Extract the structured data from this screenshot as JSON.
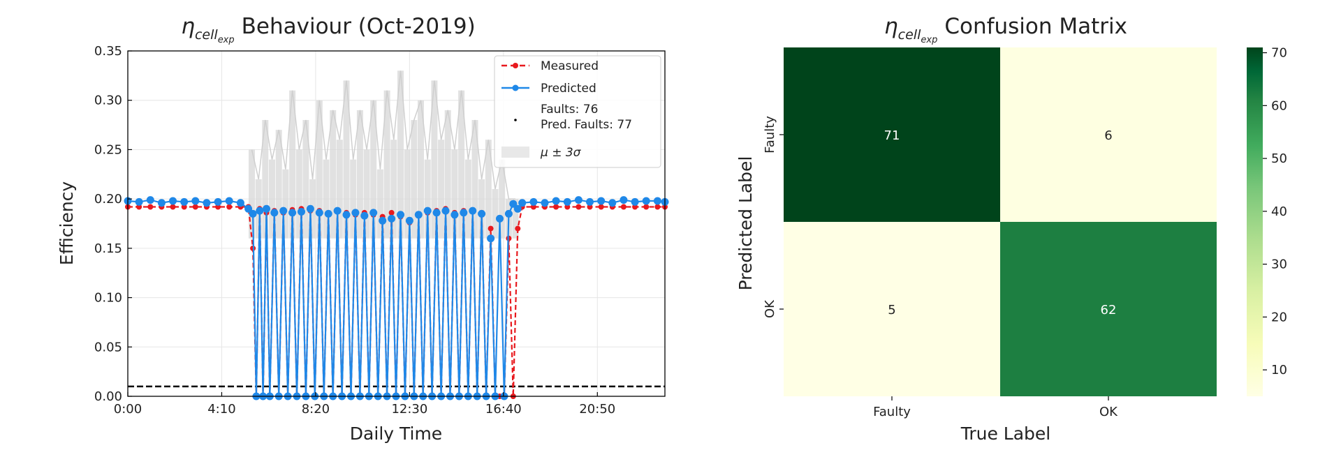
{
  "chart_data": [
    {
      "type": "line",
      "title_symbol": "η",
      "title_subscript": "cell",
      "title_subsubscript": "exp",
      "title": "Behaviour (Oct-2019)",
      "xlabel": "Daily Time",
      "ylabel": "Efficiency",
      "x_tick_labels": [
        "0:00",
        "4:10",
        "8:20",
        "12:30",
        "16:40",
        "20:50"
      ],
      "x_tick_hours": [
        0,
        4.1667,
        8.3333,
        12.5,
        16.6667,
        20.8333
      ],
      "xlim_hours": [
        0,
        23.83
      ],
      "ylim": [
        0,
        0.35
      ],
      "y_ticks": [
        0.0,
        0.05,
        0.1,
        0.15,
        0.2,
        0.25,
        0.3,
        0.35
      ],
      "y_tick_labels": [
        "0.00",
        "0.05",
        "0.10",
        "0.15",
        "0.20",
        "0.25",
        "0.30",
        "0.35"
      ],
      "grid": true,
      "legend_position": "top-right",
      "legend": {
        "measured": "Measured",
        "predicted": "Predicted",
        "faults": "Faults: 76",
        "pred_faults": "Pred. Faults: 77",
        "band": "μ ± 3σ"
      },
      "fault_threshold": 0.01,
      "colors": {
        "measured": "#e8191e",
        "predicted": "#1f88e8",
        "band": "#d9d9d9",
        "threshold": "#000000"
      },
      "series": [
        {
          "name": "Measured",
          "x_hours": [
            0.0,
            0.5,
            1.0,
            1.5,
            2.0,
            2.5,
            3.0,
            3.5,
            4.0,
            4.5,
            5.0,
            5.35,
            5.55,
            5.7,
            5.85,
            6.0,
            6.15,
            6.3,
            6.5,
            6.7,
            6.9,
            7.1,
            7.3,
            7.5,
            7.7,
            7.9,
            8.1,
            8.3,
            8.5,
            8.7,
            8.9,
            9.1,
            9.3,
            9.5,
            9.7,
            9.9,
            10.1,
            10.3,
            10.5,
            10.7,
            10.9,
            11.1,
            11.3,
            11.5,
            11.7,
            11.9,
            12.1,
            12.3,
            12.5,
            12.7,
            12.9,
            13.1,
            13.3,
            13.5,
            13.7,
            13.9,
            14.1,
            14.3,
            14.5,
            14.7,
            14.9,
            15.1,
            15.3,
            15.5,
            15.7,
            15.9,
            16.1,
            16.3,
            16.5,
            16.7,
            16.9,
            17.1,
            17.3,
            17.5,
            18.0,
            18.5,
            19.0,
            19.5,
            20.0,
            20.5,
            21.0,
            21.5,
            22.0,
            22.5,
            23.0,
            23.5,
            23.83
          ],
          "values": [
            0.192,
            0.192,
            0.192,
            0.192,
            0.192,
            0.192,
            0.192,
            0.192,
            0.192,
            0.192,
            0.192,
            0.192,
            0.15,
            0.0,
            0.19,
            0.0,
            0.186,
            0.0,
            0.188,
            0.0,
            0.186,
            0.0,
            0.189,
            0.0,
            0.19,
            0.0,
            0.188,
            0.0,
            0.188,
            0.0,
            0.186,
            0.0,
            0.188,
            0.0,
            0.186,
            0.0,
            0.184,
            0.0,
            0.186,
            0.0,
            0.184,
            0.0,
            0.182,
            0.0,
            0.186,
            0.0,
            0.182,
            0.0,
            0.176,
            0.0,
            0.184,
            0.0,
            0.186,
            0.0,
            0.188,
            0.0,
            0.19,
            0.0,
            0.186,
            0.0,
            0.188,
            0.0,
            0.188,
            0.0,
            0.186,
            0.0,
            0.17,
            0.0,
            0.0,
            0.0,
            0.16,
            0.0,
            0.17,
            0.192,
            0.192,
            0.192,
            0.192,
            0.192,
            0.192,
            0.192,
            0.192,
            0.192,
            0.192,
            0.192,
            0.192,
            0.192,
            0.192
          ]
        },
        {
          "name": "Predicted",
          "x_hours": [
            0.0,
            0.5,
            1.0,
            1.5,
            2.0,
            2.5,
            3.0,
            3.5,
            4.0,
            4.5,
            5.0,
            5.35,
            5.55,
            5.7,
            5.85,
            6.0,
            6.15,
            6.3,
            6.5,
            6.7,
            6.9,
            7.1,
            7.3,
            7.5,
            7.7,
            7.9,
            8.1,
            8.3,
            8.5,
            8.7,
            8.9,
            9.1,
            9.3,
            9.5,
            9.7,
            9.9,
            10.1,
            10.3,
            10.5,
            10.7,
            10.9,
            11.1,
            11.3,
            11.5,
            11.7,
            11.9,
            12.1,
            12.3,
            12.5,
            12.7,
            12.9,
            13.1,
            13.3,
            13.5,
            13.7,
            13.9,
            14.1,
            14.3,
            14.5,
            14.7,
            14.9,
            15.1,
            15.3,
            15.5,
            15.7,
            15.9,
            16.1,
            16.3,
            16.5,
            16.7,
            16.9,
            17.1,
            17.3,
            17.5,
            18.0,
            18.5,
            19.0,
            19.5,
            20.0,
            20.5,
            21.0,
            21.5,
            22.0,
            22.5,
            23.0,
            23.5,
            23.83
          ],
          "values": [
            0.198,
            0.197,
            0.199,
            0.196,
            0.198,
            0.197,
            0.198,
            0.196,
            0.197,
            0.198,
            0.196,
            0.19,
            0.185,
            0.0,
            0.188,
            0.0,
            0.19,
            0.0,
            0.186,
            0.0,
            0.188,
            0.0,
            0.186,
            0.0,
            0.187,
            0.0,
            0.19,
            0.0,
            0.186,
            0.0,
            0.185,
            0.0,
            0.188,
            0.0,
            0.184,
            0.0,
            0.186,
            0.0,
            0.183,
            0.0,
            0.186,
            0.0,
            0.178,
            0.0,
            0.18,
            0.0,
            0.184,
            0.0,
            0.178,
            0.0,
            0.184,
            0.0,
            0.188,
            0.0,
            0.186,
            0.0,
            0.188,
            0.0,
            0.184,
            0.0,
            0.186,
            0.0,
            0.188,
            0.0,
            0.185,
            0.0,
            0.16,
            0.0,
            0.18,
            0.0,
            0.185,
            0.195,
            0.19,
            0.196,
            0.197,
            0.196,
            0.198,
            0.197,
            0.199,
            0.197,
            0.198,
            0.196,
            0.199,
            0.197,
            0.198,
            0.198,
            0.197
          ]
        }
      ],
      "band_upper_x_hours": [
        5.5,
        5.8,
        6.1,
        6.4,
        6.7,
        7.0,
        7.3,
        7.6,
        7.9,
        8.2,
        8.5,
        8.8,
        9.1,
        9.4,
        9.7,
        10.0,
        10.3,
        10.6,
        10.9,
        11.2,
        11.5,
        11.8,
        12.1,
        12.4,
        12.7,
        13.0,
        13.3,
        13.6,
        13.9,
        14.2,
        14.5,
        14.8,
        15.1,
        15.4,
        15.7,
        16.0,
        16.3,
        16.6,
        16.9,
        17.2
      ],
      "band_upper_values": [
        0.25,
        0.22,
        0.28,
        0.24,
        0.27,
        0.23,
        0.31,
        0.25,
        0.28,
        0.22,
        0.3,
        0.24,
        0.29,
        0.26,
        0.32,
        0.24,
        0.29,
        0.25,
        0.3,
        0.23,
        0.31,
        0.26,
        0.33,
        0.25,
        0.28,
        0.3,
        0.24,
        0.32,
        0.26,
        0.29,
        0.25,
        0.31,
        0.24,
        0.28,
        0.22,
        0.26,
        0.21,
        0.24,
        0.2,
        0.2
      ]
    },
    {
      "type": "heatmap",
      "title_symbol": "η",
      "title_subscript": "cell",
      "title_subsubscript": "exp",
      "title": "Confusion Matrix",
      "xlabel": "True Label",
      "ylabel": "Predicted Label",
      "x_categories": [
        "Faulty",
        "OK"
      ],
      "y_categories": [
        "Faulty",
        "OK"
      ],
      "values": [
        [
          71,
          6
        ],
        [
          5,
          62
        ]
      ],
      "colorbar_ticks": [
        10,
        20,
        30,
        40,
        50,
        60,
        70
      ],
      "colorbar_range": [
        5,
        71
      ],
      "colormap": "Greens",
      "colors": {
        "low": "#ffffe5",
        "high": "#00441b"
      }
    }
  ]
}
